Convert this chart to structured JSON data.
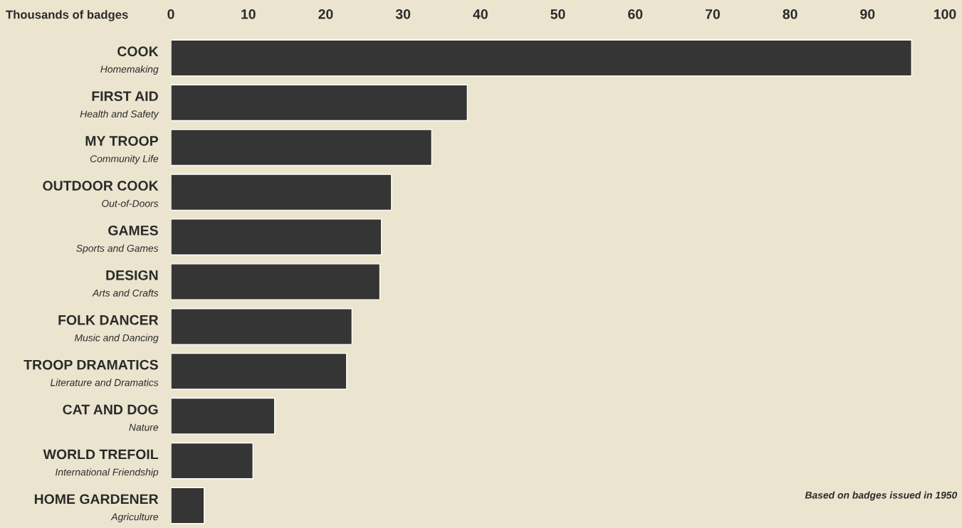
{
  "chart_data": {
    "type": "bar",
    "orientation": "horizontal",
    "xlabel": "Thousands of badges",
    "categories": [
      "COOK\nHomemaking",
      "FIRST AID\nHealth and Safety",
      "MY TROOP\nCommunity Life",
      "OUTDOOR COOK\nOut-of-Doors",
      "GAMES\nSports and Games",
      "DESIGN\nArts and Crafts",
      "FOLK DANCER\nMusic and Dancing",
      "TROOP DRAMATICS\nLiterature and Dramatics",
      "CAT AND DOG\nNature",
      "WORLD TREFOIL\nInternational Friendship",
      "HOME GARDENER\nAgriculture"
    ],
    "values": [
      95.7,
      38.3,
      33.7,
      28.5,
      27.2,
      27.0,
      23.4,
      22.7,
      13.4,
      10.6,
      4.3
    ],
    "color": "#353535",
    "xlim": [
      0,
      100
    ],
    "xticks": [
      0,
      10,
      20,
      30,
      40,
      50,
      60,
      70,
      80,
      90,
      100
    ],
    "grid": false,
    "legend": false,
    "annotations": [
      "Based on badges issued in 1950"
    ]
  }
}
